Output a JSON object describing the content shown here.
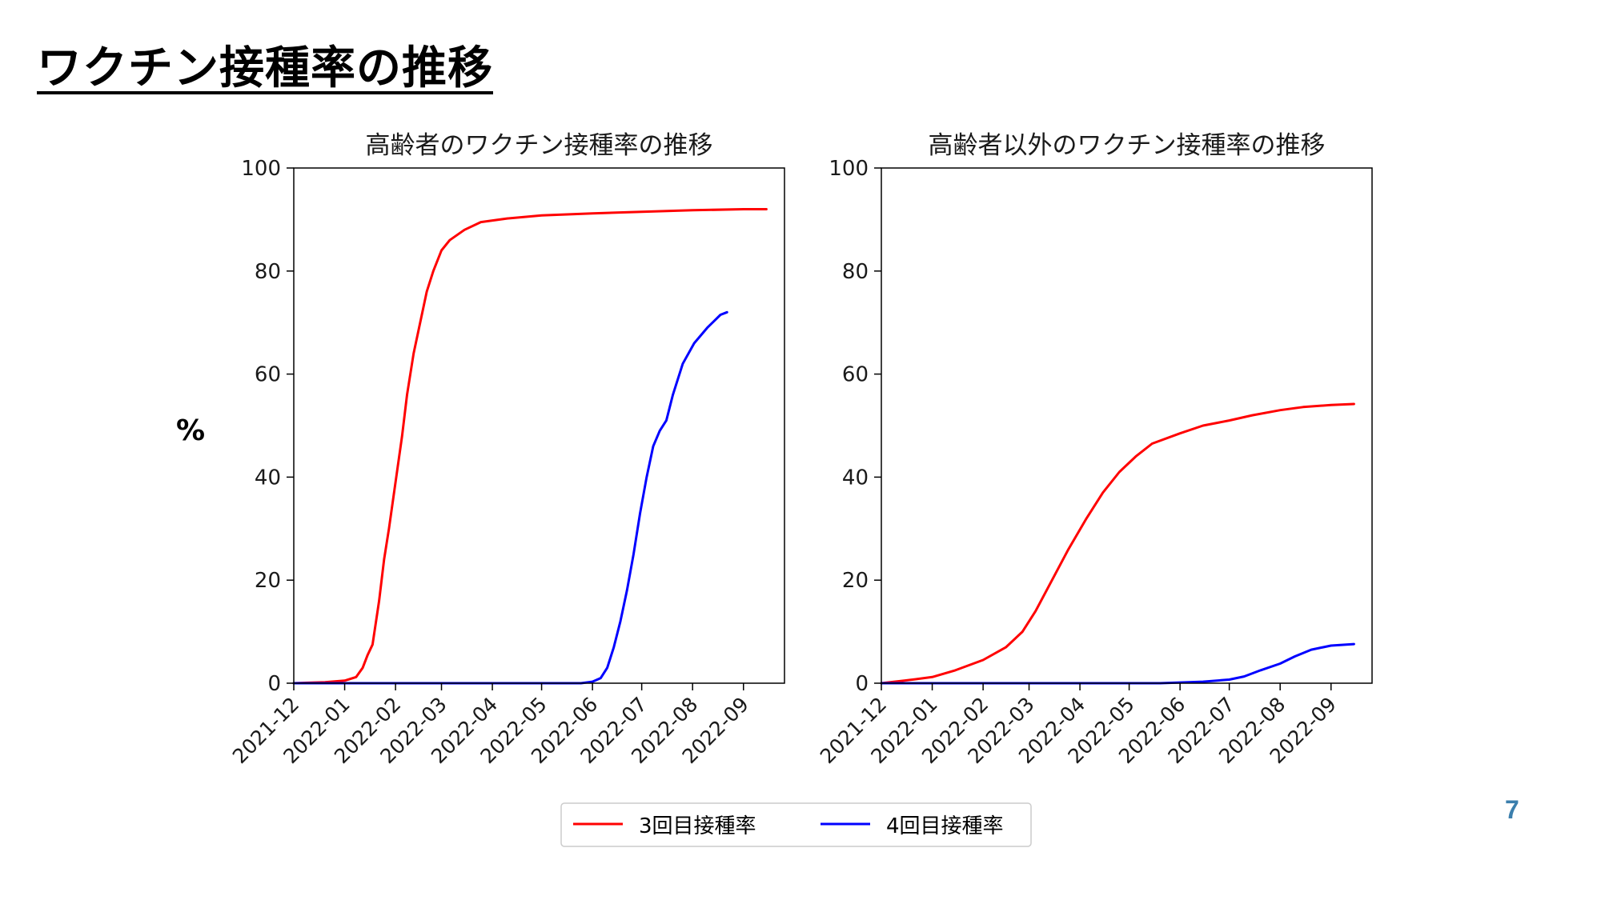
{
  "slide": {
    "title": "ワクチン接種率の推移",
    "page_number": "7",
    "ylabel": "%"
  },
  "colors": {
    "dose3": "#ff0000",
    "dose4": "#0000ff"
  },
  "legend": {
    "items": [
      {
        "label": "3回目接種率",
        "color": "#ff0000"
      },
      {
        "label": "4回目接種率",
        "color": "#0000ff"
      }
    ]
  },
  "chart_data": [
    {
      "type": "line",
      "title": "高齢者のワクチン接種率の推移",
      "xlabel": "",
      "ylabel": "%",
      "xlim": [
        "2021-12-01",
        "2022-09-26"
      ],
      "ylim": [
        0,
        100
      ],
      "x_ticks": [
        "2021-12",
        "2022-01",
        "2022-02",
        "2022-03",
        "2022-04",
        "2022-05",
        "2022-06",
        "2022-07",
        "2022-08",
        "2022-09"
      ],
      "y_ticks": [
        0,
        20,
        40,
        60,
        80,
        100
      ],
      "grid": false,
      "series": [
        {
          "name": "3回目接種率",
          "color": "#ff0000",
          "points": [
            [
              "2021-12-01",
              0
            ],
            [
              "2021-12-20",
              0.2
            ],
            [
              "2022-01-01",
              0.5
            ],
            [
              "2022-01-08",
              1.2
            ],
            [
              "2022-01-12",
              3
            ],
            [
              "2022-01-15",
              5.5
            ],
            [
              "2022-01-18",
              7.5
            ],
            [
              "2022-01-22",
              16
            ],
            [
              "2022-01-25",
              24
            ],
            [
              "2022-01-28",
              30
            ],
            [
              "2022-02-01",
              39
            ],
            [
              "2022-02-05",
              48
            ],
            [
              "2022-02-08",
              56
            ],
            [
              "2022-02-12",
              64
            ],
            [
              "2022-02-16",
              70
            ],
            [
              "2022-02-20",
              76
            ],
            [
              "2022-02-24",
              80
            ],
            [
              "2022-03-01",
              84
            ],
            [
              "2022-03-06",
              86
            ],
            [
              "2022-03-15",
              88
            ],
            [
              "2022-03-25",
              89.5
            ],
            [
              "2022-04-10",
              90.2
            ],
            [
              "2022-05-01",
              90.8
            ],
            [
              "2022-06-01",
              91.2
            ],
            [
              "2022-07-01",
              91.5
            ],
            [
              "2022-08-01",
              91.8
            ],
            [
              "2022-09-01",
              92
            ],
            [
              "2022-09-15",
              92
            ]
          ]
        },
        {
          "name": "4回目接種率",
          "color": "#0000ff",
          "points": [
            [
              "2021-12-01",
              0
            ],
            [
              "2022-05-25",
              0
            ],
            [
              "2022-06-01",
              0.3
            ],
            [
              "2022-06-06",
              1
            ],
            [
              "2022-06-10",
              3
            ],
            [
              "2022-06-14",
              7
            ],
            [
              "2022-06-18",
              12
            ],
            [
              "2022-06-22",
              18
            ],
            [
              "2022-06-26",
              25
            ],
            [
              "2022-06-30",
              33
            ],
            [
              "2022-07-04",
              40
            ],
            [
              "2022-07-08",
              46
            ],
            [
              "2022-07-12",
              49
            ],
            [
              "2022-07-16",
              51
            ],
            [
              "2022-07-20",
              56
            ],
            [
              "2022-07-26",
              62
            ],
            [
              "2022-08-02",
              66
            ],
            [
              "2022-08-10",
              69
            ],
            [
              "2022-08-18",
              71.5
            ],
            [
              "2022-08-22",
              72
            ]
          ]
        }
      ]
    },
    {
      "type": "line",
      "title": "高齢者以外のワクチン接種率の推移",
      "xlabel": "",
      "ylabel": "",
      "xlim": [
        "2021-12-01",
        "2022-09-26"
      ],
      "ylim": [
        0,
        100
      ],
      "x_ticks": [
        "2021-12",
        "2022-01",
        "2022-02",
        "2022-03",
        "2022-04",
        "2022-05",
        "2022-06",
        "2022-07",
        "2022-08",
        "2022-09"
      ],
      "y_ticks": [
        0,
        20,
        40,
        60,
        80,
        100
      ],
      "grid": false,
      "series": [
        {
          "name": "3回目接種率",
          "color": "#ff0000",
          "points": [
            [
              "2021-12-01",
              0
            ],
            [
              "2021-12-15",
              0.5
            ],
            [
              "2022-01-01",
              1.2
            ],
            [
              "2022-01-15",
              2.5
            ],
            [
              "2022-02-01",
              4.5
            ],
            [
              "2022-02-15",
              7
            ],
            [
              "2022-02-25",
              10
            ],
            [
              "2022-03-05",
              14
            ],
            [
              "2022-03-15",
              20
            ],
            [
              "2022-03-25",
              26
            ],
            [
              "2022-04-05",
              32
            ],
            [
              "2022-04-15",
              37
            ],
            [
              "2022-04-25",
              41
            ],
            [
              "2022-05-05",
              44
            ],
            [
              "2022-05-15",
              46.5
            ],
            [
              "2022-06-01",
              48.5
            ],
            [
              "2022-06-15",
              50
            ],
            [
              "2022-07-01",
              51
            ],
            [
              "2022-07-15",
              52
            ],
            [
              "2022-08-01",
              53
            ],
            [
              "2022-08-15",
              53.6
            ],
            [
              "2022-09-01",
              54
            ],
            [
              "2022-09-15",
              54.2
            ]
          ]
        },
        {
          "name": "4回目接種率",
          "color": "#0000ff",
          "points": [
            [
              "2021-12-01",
              0
            ],
            [
              "2022-05-20",
              0
            ],
            [
              "2022-06-15",
              0.3
            ],
            [
              "2022-07-01",
              0.7
            ],
            [
              "2022-07-10",
              1.3
            ],
            [
              "2022-07-20",
              2.5
            ],
            [
              "2022-08-01",
              3.8
            ],
            [
              "2022-08-10",
              5.2
            ],
            [
              "2022-08-20",
              6.5
            ],
            [
              "2022-09-01",
              7.3
            ],
            [
              "2022-09-15",
              7.6
            ]
          ]
        }
      ]
    }
  ]
}
